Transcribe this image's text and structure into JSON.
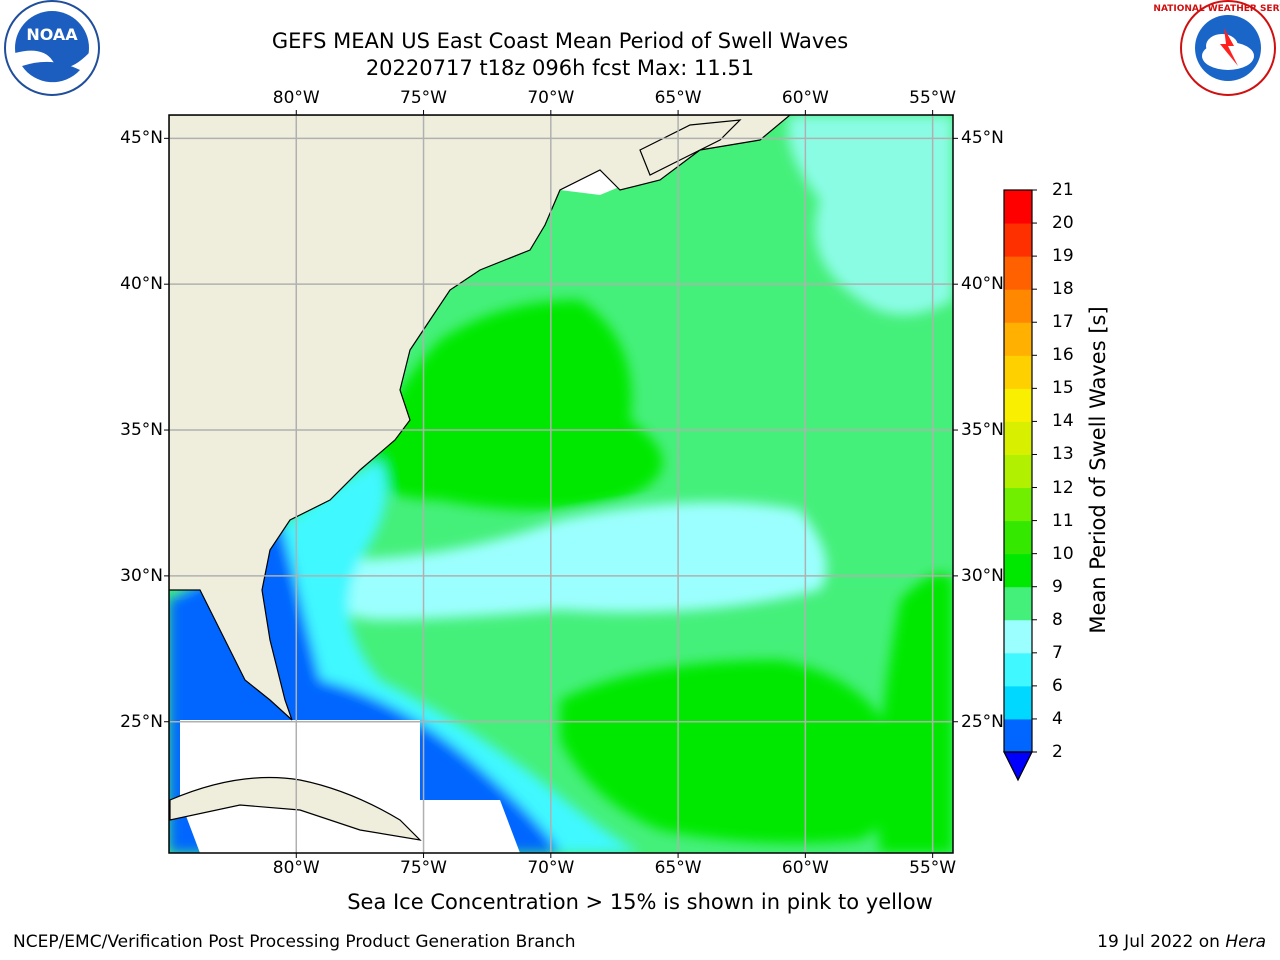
{
  "header": {
    "title_line1": "GEFS MEAN US East Coast Mean Period of Swell Waves",
    "title_line2": "20220717 t18z 096h fcst   Max: 11.51"
  },
  "logos": {
    "left": {
      "icon": "noaa-logo-icon",
      "text": "NOAA",
      "ring_text": "NATIONAL OCEANIC AND ATMOSPHERIC ADMINISTRATION · U.S. DEPARTMENT OF COMMERCE"
    },
    "right": {
      "icon": "national-weather-service-logo-icon",
      "ring_text": "NATIONAL WEATHER SERVICE"
    }
  },
  "map": {
    "lon_labels": [
      {
        "value": -80,
        "text": "80°W"
      },
      {
        "value": -75,
        "text": "75°W"
      },
      {
        "value": -70,
        "text": "70°W"
      },
      {
        "value": -65,
        "text": "65°W"
      },
      {
        "value": -60,
        "text": "60°W"
      },
      {
        "value": -55,
        "text": "55°W"
      }
    ],
    "lat_labels": [
      {
        "value": 45,
        "text": "45°N"
      },
      {
        "value": 40,
        "text": "40°N"
      },
      {
        "value": 35,
        "text": "35°N"
      },
      {
        "value": 30,
        "text": "30°N"
      },
      {
        "value": 25,
        "text": "25°N"
      }
    ],
    "lon_range": [
      -85,
      -54.2
    ],
    "lat_range": [
      20.5,
      45.8
    ],
    "gridlines": true,
    "colors": {
      "land": "#efeedd",
      "grid": "#b0b0b0",
      "missing": "#ffffff"
    }
  },
  "colorbar": {
    "label": "Mean Period of Swell Waves [s]",
    "levels": [
      "2",
      "4",
      "6",
      "7",
      "8",
      "9",
      "10",
      "11",
      "12",
      "13",
      "14",
      "15",
      "16",
      "17",
      "18",
      "19",
      "20",
      "21"
    ],
    "colors": [
      "#0066ff",
      "#00d8ff",
      "#40f8ff",
      "#9cffff",
      "#45f07a",
      "#00e800",
      "#34e800",
      "#70f000",
      "#b0f000",
      "#d8f000",
      "#f8f000",
      "#ffd000",
      "#ffb000",
      "#ff8800",
      "#ff6000",
      "#ff3000",
      "#ff0000"
    ],
    "extend_color": "#0000ff"
  },
  "note": "Sea Ice Concentration > 15% is shown in pink to yellow",
  "footer": {
    "left": "NCEP/EMC/Verification Post Processing Product Generation Branch",
    "date": "19 Jul 2022 on ",
    "host": "Hera"
  }
}
